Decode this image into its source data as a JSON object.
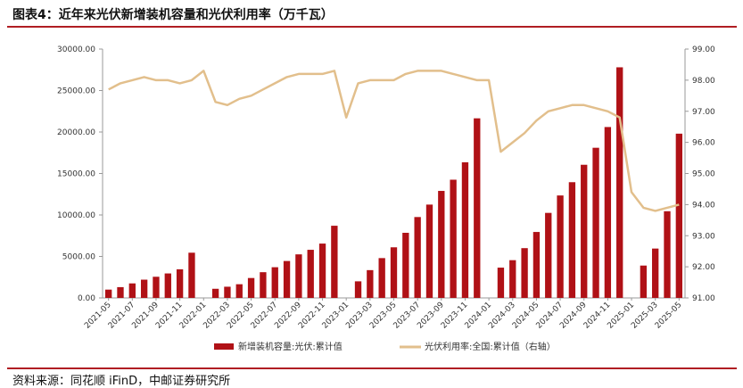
{
  "title": "图表4：近年来光伏新增装机容量和光伏利用率（万千瓦）",
  "source": "资料来源：同花顺 iFinD，中邮证券研究所",
  "colors": {
    "bar": "#b01116",
    "line": "#e2bf8c",
    "accent": "#b01e23"
  },
  "chart_data": {
    "type": "bar",
    "categories": [
      "2021-05",
      "2021-06",
      "2021-07",
      "2021-08",
      "2021-09",
      "2021-10",
      "2021-11",
      "2021-12",
      "2022-01",
      "2022-02",
      "2022-03",
      "2022-04",
      "2022-05",
      "2022-06",
      "2022-07",
      "2022-08",
      "2022-09",
      "2022-10",
      "2022-11",
      "2022-12",
      "2023-01",
      "2023-02",
      "2023-03",
      "2023-04",
      "2023-05",
      "2023-06",
      "2023-07",
      "2023-08",
      "2023-09",
      "2023-10",
      "2023-11",
      "2023-12",
      "2024-01",
      "2024-02",
      "2024-03",
      "2024-04",
      "2024-05",
      "2024-06",
      "2024-07",
      "2024-08",
      "2024-09",
      "2024-10",
      "2024-11",
      "2024-12",
      "2025-01",
      "2025-02",
      "2025-03",
      "2025-04",
      "2025-05"
    ],
    "x_tick_labels": [
      "2021-05",
      "2021-07",
      "2021-09",
      "2021-11",
      "2022-01",
      "2022-03",
      "2022-05",
      "2022-07",
      "2022-09",
      "2022-11",
      "2023-01",
      "2023-03",
      "2023-05",
      "2023-07",
      "2023-09",
      "2023-11",
      "2024-01",
      "2024-03",
      "2024-05",
      "2024-07",
      "2024-09",
      "2024-11",
      "2025-01",
      "2025-03",
      "2025-05"
    ],
    "series": [
      {
        "name": "新增装机容量:光伏:累计值",
        "type": "bar",
        "axis": "left",
        "values": [
          1000,
          1300,
          1750,
          2200,
          2550,
          2950,
          3450,
          5450,
          null,
          1100,
          1350,
          1650,
          2400,
          3100,
          3700,
          4450,
          5250,
          5800,
          6550,
          8700,
          null,
          2000,
          3350,
          4800,
          6100,
          7850,
          9750,
          11250,
          12900,
          14250,
          16350,
          21650,
          null,
          3650,
          4550,
          6000,
          7950,
          10250,
          12350,
          13950,
          16050,
          18100,
          20600,
          27800,
          null,
          3900,
          5950,
          10450,
          19800
        ]
      },
      {
        "name": "光伏利用率:全国:累计值（右轴）",
        "type": "line",
        "axis": "right",
        "values": [
          97.7,
          97.9,
          98.0,
          98.1,
          98.0,
          98.0,
          97.9,
          98.0,
          98.3,
          97.3,
          97.2,
          97.4,
          97.5,
          97.7,
          97.9,
          98.1,
          98.2,
          98.2,
          98.2,
          98.3,
          96.8,
          97.9,
          98.0,
          98.0,
          98.0,
          98.2,
          98.3,
          98.3,
          98.3,
          98.2,
          98.1,
          98.0,
          98.0,
          95.7,
          96.0,
          96.3,
          96.7,
          97.0,
          97.1,
          97.2,
          97.2,
          97.1,
          97.0,
          96.8,
          94.4,
          93.9,
          93.8,
          93.9,
          94.0
        ]
      }
    ],
    "y_left": {
      "min": 0,
      "max": 30000,
      "ticks": [
        "0.00",
        "5000.00",
        "10000.00",
        "15000.00",
        "20000.00",
        "25000.00",
        "30000.00"
      ]
    },
    "y_right": {
      "min": 91,
      "max": 99,
      "ticks": [
        "91.00",
        "92.00",
        "93.00",
        "94.00",
        "95.00",
        "96.00",
        "97.00",
        "98.00",
        "99.00"
      ]
    },
    "legend": {
      "position": "bottom"
    },
    "grid": false
  }
}
